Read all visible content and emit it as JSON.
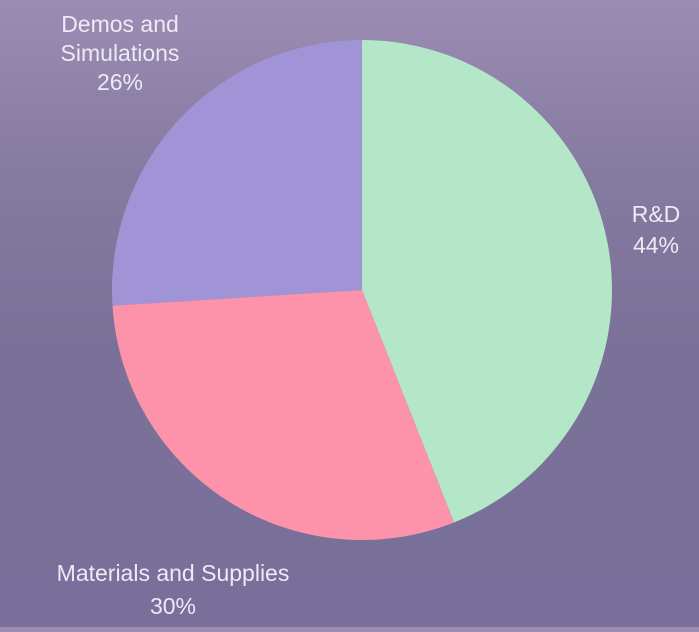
{
  "chart_data": {
    "type": "pie",
    "title": "",
    "slices": [
      {
        "label": "R&D",
        "value": 44,
        "percent_label": "44%",
        "color": "#b3e7c7"
      },
      {
        "label": "Materials and Supplies",
        "value": 30,
        "percent_label": "30%",
        "color": "#fc93ab"
      },
      {
        "label": "Demos and Simulations",
        "value": 26,
        "percent_label": "26%",
        "color": "#a094d6"
      }
    ],
    "label_color": "#eeeaf5",
    "start": "top",
    "direction": "clockwise",
    "legend": "none"
  }
}
